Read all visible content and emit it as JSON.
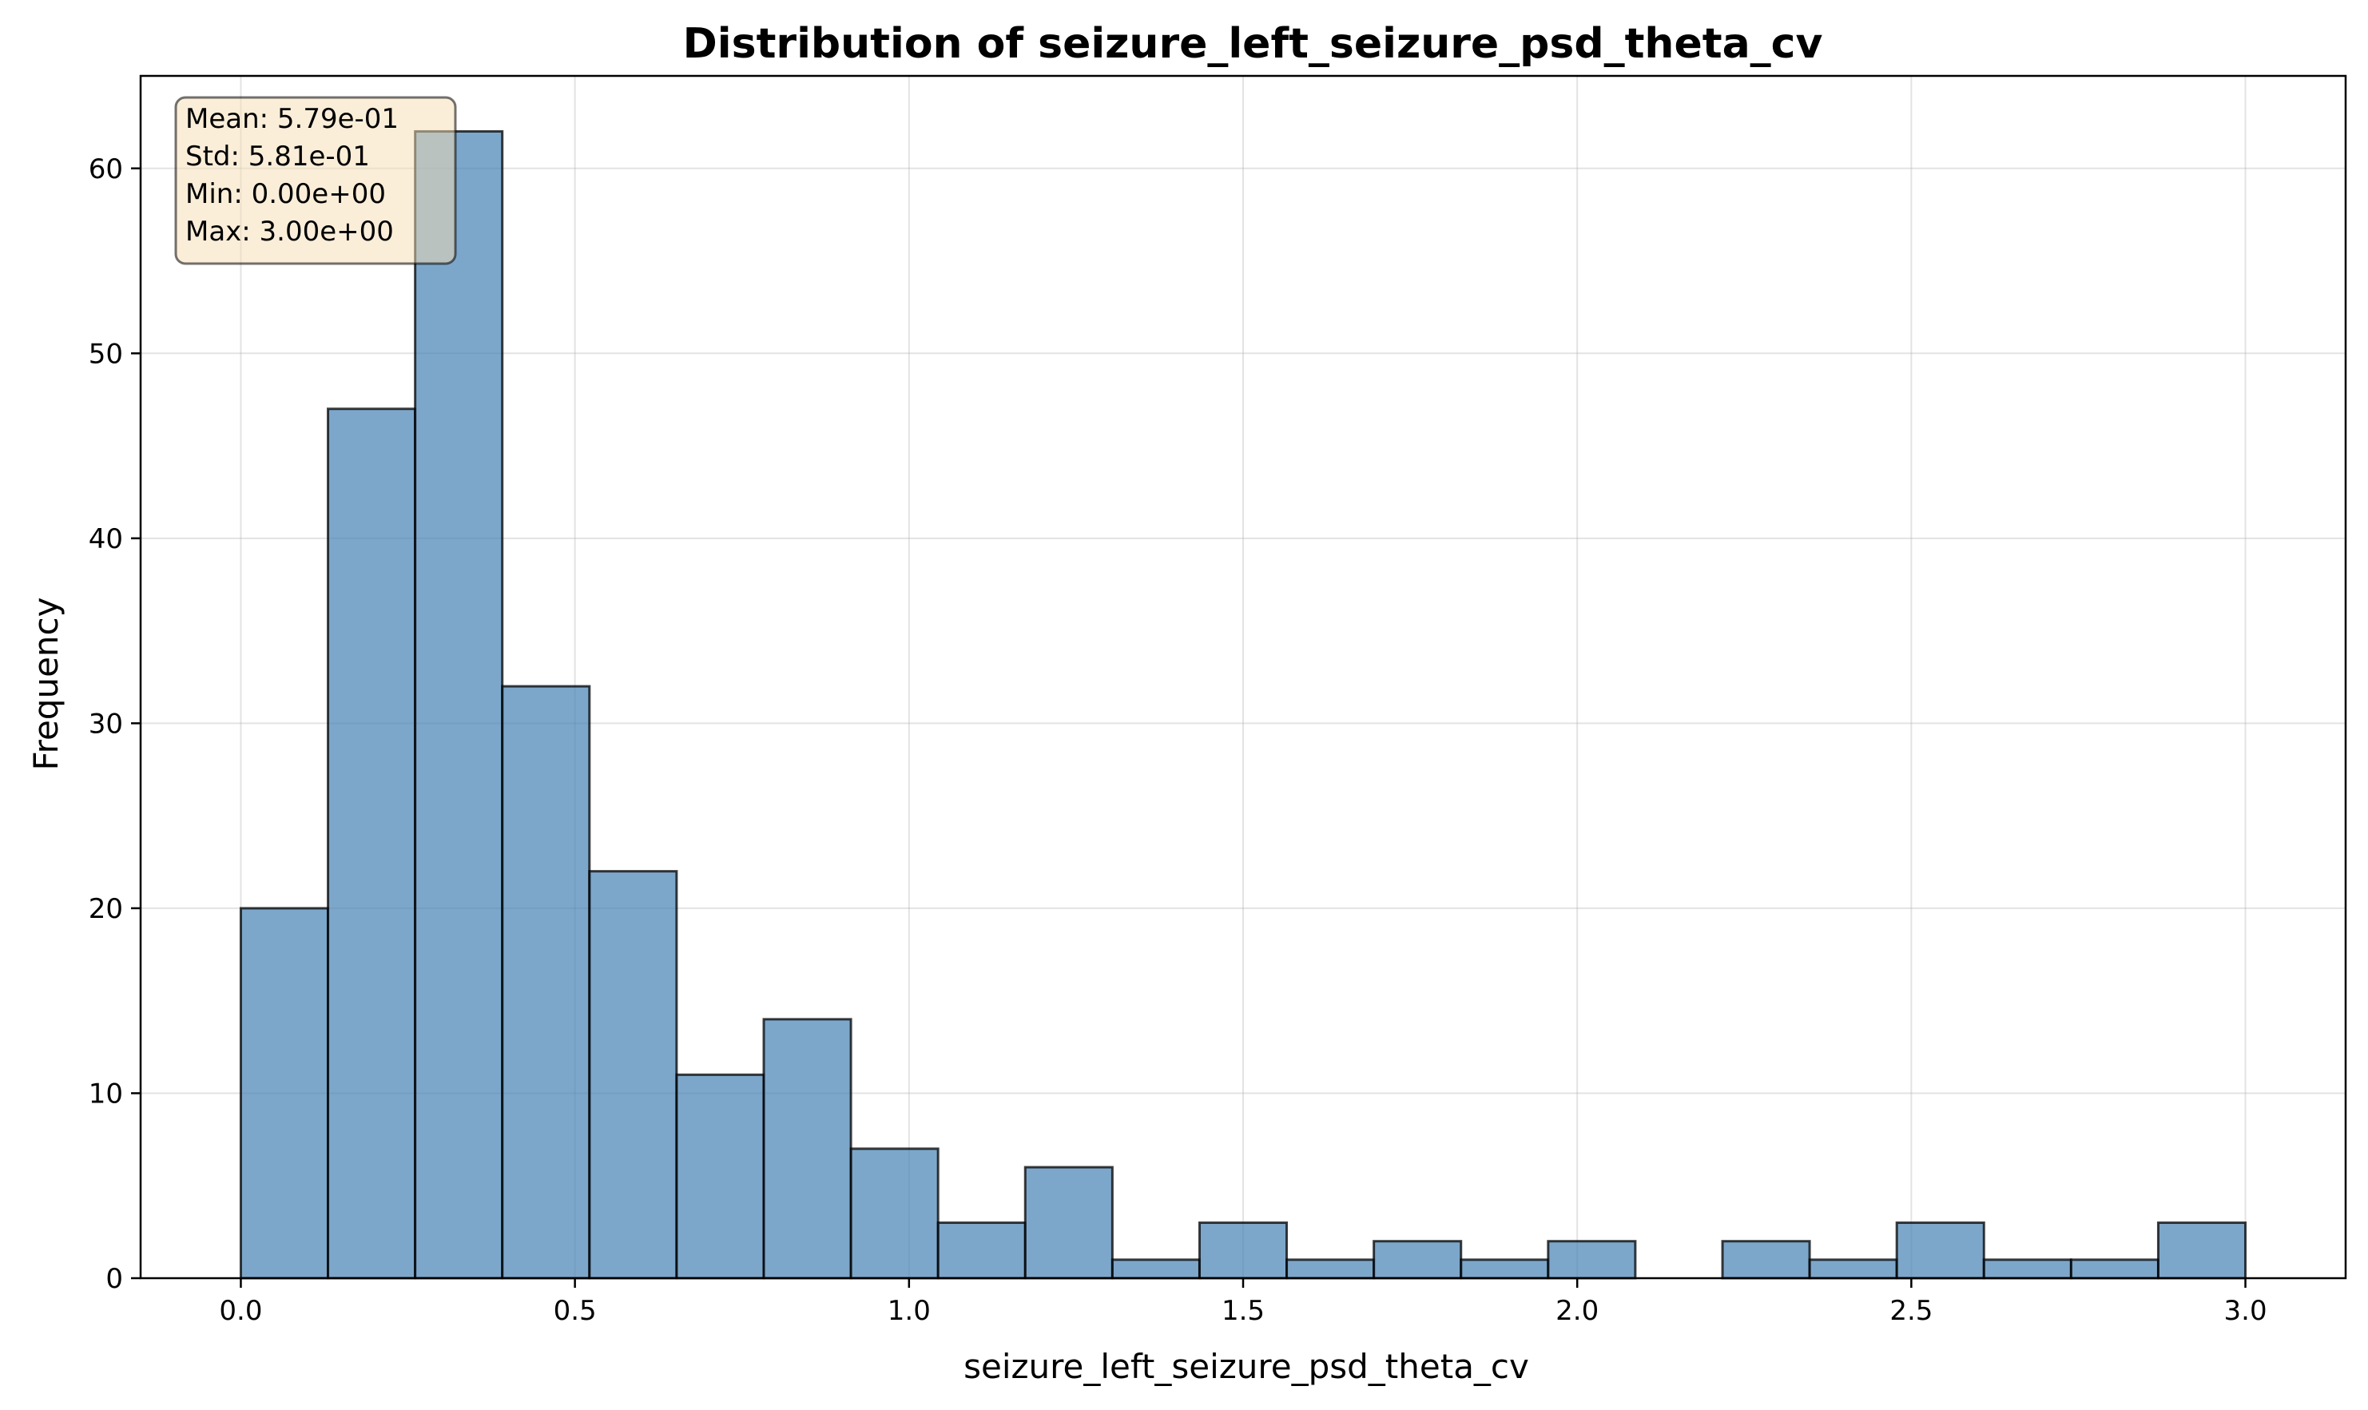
{
  "chart_data": {
    "type": "bar",
    "title": "Distribution of seizure_left_seizure_psd_theta_cv",
    "xlabel": "seizure_left_seizure_psd_theta_cv",
    "ylabel": "Frequency",
    "bin_edges": [
      0.0,
      0.13043,
      0.26087,
      0.3913,
      0.52174,
      0.65217,
      0.78261,
      0.91304,
      1.04348,
      1.17391,
      1.30435,
      1.43478,
      1.56522,
      1.69565,
      1.82609,
      1.95652,
      2.08696,
      2.21739,
      2.34783,
      2.47826,
      2.6087,
      2.73913,
      2.86957,
      3.0
    ],
    "values": [
      20,
      47,
      62,
      32,
      22,
      11,
      14,
      7,
      3,
      6,
      1,
      3,
      1,
      2,
      1,
      2,
      0,
      2,
      1,
      3,
      1,
      1,
      3
    ],
    "xlim": [
      -0.15,
      3.15
    ],
    "ylim": [
      0,
      65
    ],
    "xticks": [
      0.0,
      0.5,
      1.0,
      1.5,
      2.0,
      2.5,
      3.0
    ],
    "xtick_labels": [
      "0.0",
      "0.5",
      "1.0",
      "1.5",
      "2.0",
      "2.5",
      "3.0"
    ],
    "yticks": [
      0,
      10,
      20,
      30,
      40,
      50,
      60
    ],
    "ytick_labels": [
      "0",
      "10",
      "20",
      "30",
      "40",
      "50",
      "60"
    ],
    "grid": true,
    "bar_color": "#4682b4",
    "stats_box_color": "#f5deb3",
    "stats": [
      "Mean: 5.79e-01",
      "Std: 5.81e-01",
      "Min: 0.00e+00",
      "Max: 3.00e+00"
    ]
  }
}
